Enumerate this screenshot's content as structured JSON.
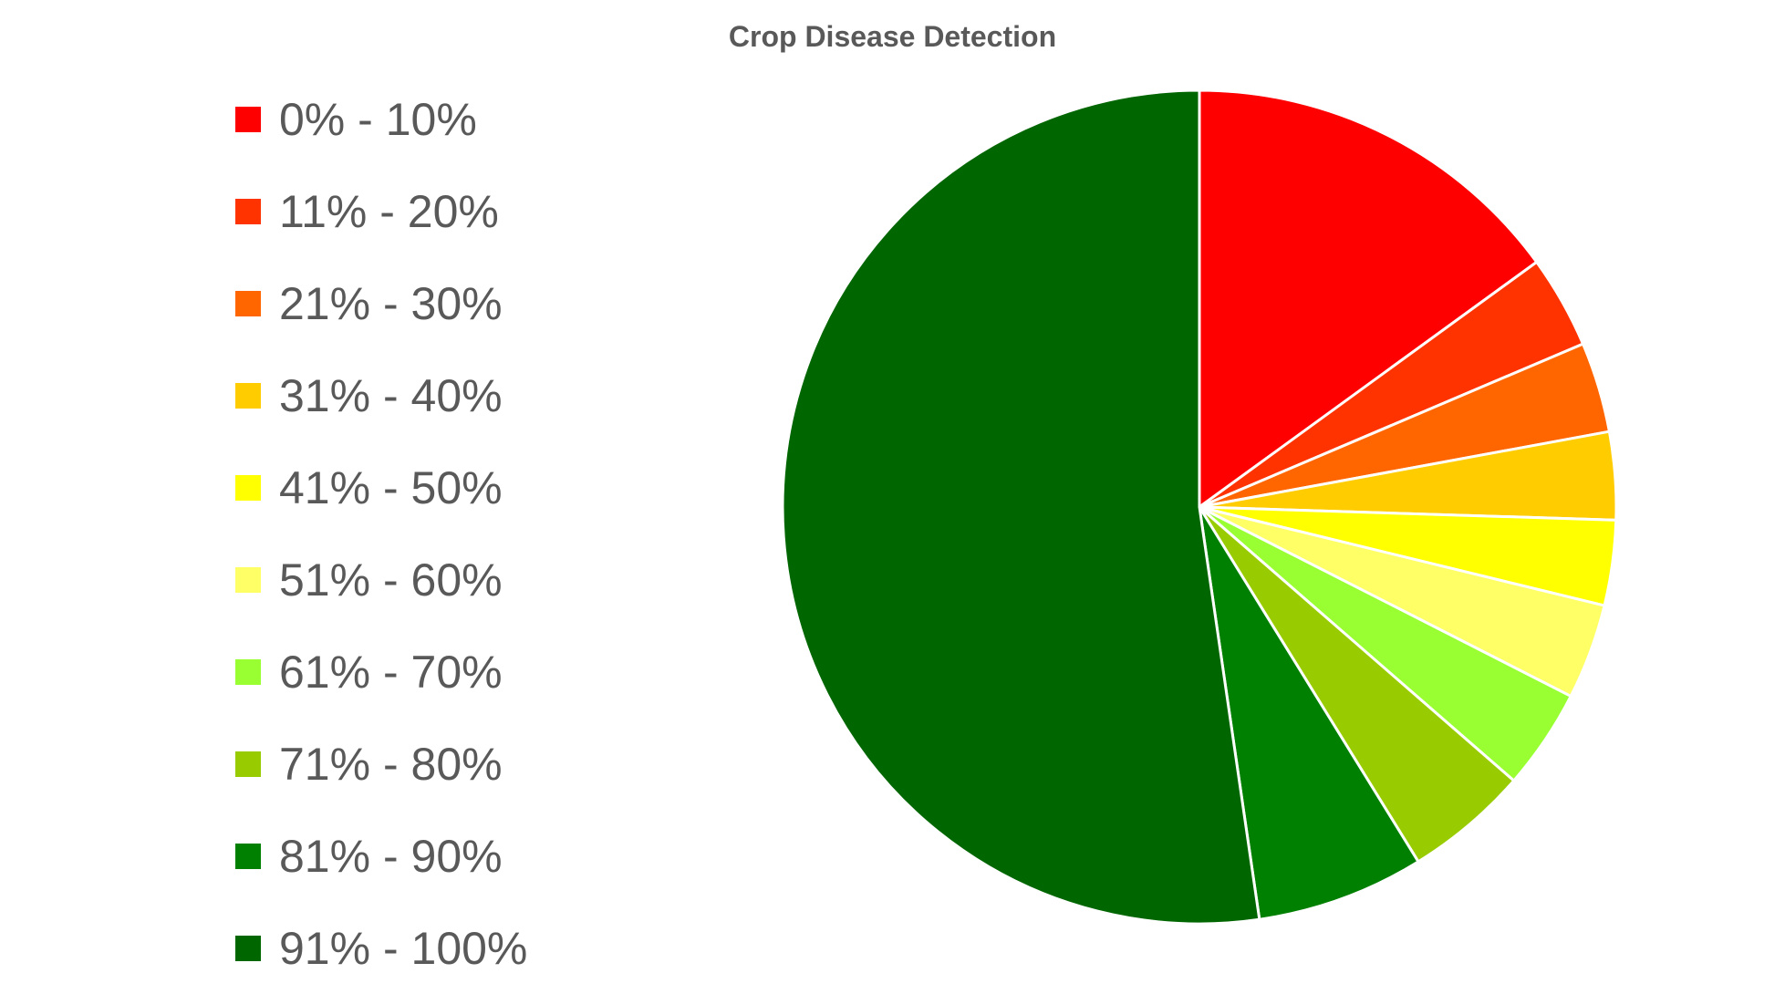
{
  "chart_data": {
    "type": "pie",
    "title": "Crop Disease Detection",
    "legend_position": "left",
    "categories": [
      "0% - 10%",
      "11% - 20%",
      "21% - 30%",
      "31% - 40%",
      "41% - 50%",
      "51% - 60%",
      "61% - 70%",
      "71% - 80%",
      "81% - 90%",
      "91% - 100%"
    ],
    "values": [
      15.0,
      3.6,
      3.5,
      3.4,
      3.3,
      3.7,
      3.9,
      4.8,
      6.5,
      52.3
    ],
    "colors": [
      "#FF0000",
      "#FF3300",
      "#FF6600",
      "#FFCC00",
      "#FFFF00",
      "#FFFF66",
      "#99FF33",
      "#99CC00",
      "#008000",
      "#006600"
    ]
  }
}
